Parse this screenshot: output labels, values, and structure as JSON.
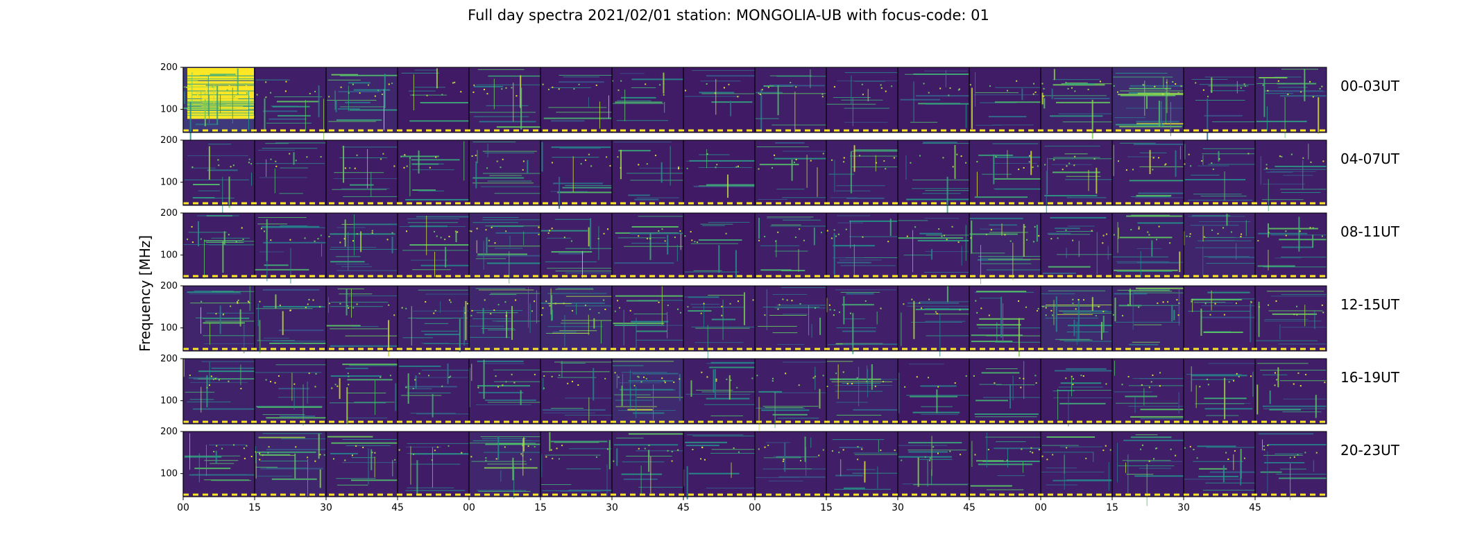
{
  "chart_data": {
    "type": "heatmap",
    "title": "Full day spectra 2021/02/01 station: MONGOLIA-UB with focus-code: 01",
    "ylabel": "Frequency [MHz]",
    "xlabel": "",
    "colormap": "viridis",
    "colors": {
      "low": "#440154",
      "mid": "#21918c",
      "high": "#fde725"
    },
    "ylim": [
      45,
      200
    ],
    "ytick_labels": [
      "200",
      "100"
    ],
    "ytick_values": [
      200,
      100
    ],
    "xtick_labels": [
      "00",
      "15",
      "30",
      "45",
      "00",
      "15",
      "30",
      "45",
      "00",
      "15",
      "30",
      "45",
      "00",
      "15",
      "30",
      "45"
    ],
    "rows": [
      {
        "label": "00-03UT",
        "hours": [
          0,
          1,
          2,
          3
        ]
      },
      {
        "label": "04-07UT",
        "hours": [
          4,
          5,
          6,
          7
        ]
      },
      {
        "label": "08-11UT",
        "hours": [
          8,
          9,
          10,
          11
        ]
      },
      {
        "label": "12-15UT",
        "hours": [
          12,
          13,
          14,
          15
        ]
      },
      {
        "label": "16-19UT",
        "hours": [
          16,
          17,
          18,
          19
        ]
      },
      {
        "label": "20-23UT",
        "hours": [
          20,
          21,
          22,
          23
        ]
      }
    ],
    "panels_per_row": 16,
    "panel_minutes": 15,
    "row_intensity": [
      [
        0.95,
        0.25,
        0.45,
        0.15,
        0.3,
        0.2,
        0.2,
        0.15,
        0.25,
        0.2,
        0.2,
        0.2,
        0.35,
        0.6,
        0.2,
        0.35
      ],
      [
        0.25,
        0.2,
        0.2,
        0.2,
        0.3,
        0.2,
        0.2,
        0.15,
        0.2,
        0.25,
        0.2,
        0.25,
        0.3,
        0.3,
        0.25,
        0.25
      ],
      [
        0.25,
        0.25,
        0.35,
        0.3,
        0.4,
        0.3,
        0.25,
        0.15,
        0.25,
        0.3,
        0.25,
        0.4,
        0.25,
        0.35,
        0.4,
        0.25
      ],
      [
        0.4,
        0.35,
        0.3,
        0.35,
        0.45,
        0.55,
        0.3,
        0.3,
        0.3,
        0.3,
        0.3,
        0.3,
        0.55,
        0.4,
        0.3,
        0.3
      ],
      [
        0.35,
        0.25,
        0.25,
        0.25,
        0.25,
        0.25,
        0.55,
        0.25,
        0.25,
        0.35,
        0.15,
        0.2,
        0.2,
        0.3,
        0.25,
        0.25
      ],
      [
        0.3,
        0.45,
        0.3,
        0.2,
        0.45,
        0.25,
        0.25,
        0.2,
        0.25,
        0.25,
        0.25,
        0.25,
        0.25,
        0.25,
        0.25,
        0.25
      ]
    ]
  }
}
